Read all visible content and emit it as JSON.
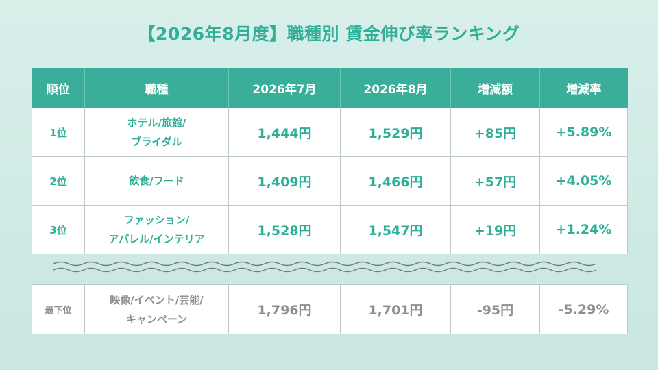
{
  "title": "【2026年8月度】職種別 賃金伸び率ランキング",
  "headers": [
    "順位",
    "職種",
    "2026年7月",
    "2026年8月",
    "増減額",
    "増減率"
  ],
  "rows": [
    {
      "rank": "1位",
      "job_line1": "ホテル/旅館/",
      "job_line2": "ブライダル",
      "jul": "1,444円",
      "aug": "1,529円",
      "diff": "+85円",
      "rate": "+5.89%"
    },
    {
      "rank": "2位",
      "job_line1": "飲食/フード",
      "job_line2": "",
      "jul": "1,409円",
      "aug": "1,466円",
      "diff": "+57円",
      "rate": "+4.05%"
    },
    {
      "rank": "3位",
      "job_line1": "ファッション/",
      "job_line2": "アパレル/インテリア",
      "jul": "1,528円",
      "aug": "1,547円",
      "diff": "+19円",
      "rate": "+1.24%"
    }
  ],
  "bottom_row": {
    "rank": "最下位",
    "job_line1": "映像/イベント/芸能/",
    "job_line2": "キャンペーン",
    "jul": "1,796円",
    "aug": "1,701円",
    "diff": "-95円",
    "rate": "-5.29%"
  },
  "colors": {
    "accent": "#3aae9a",
    "text_accent": "#2fae98",
    "muted": "#8f8f8f",
    "background": "#cfe9e4"
  }
}
